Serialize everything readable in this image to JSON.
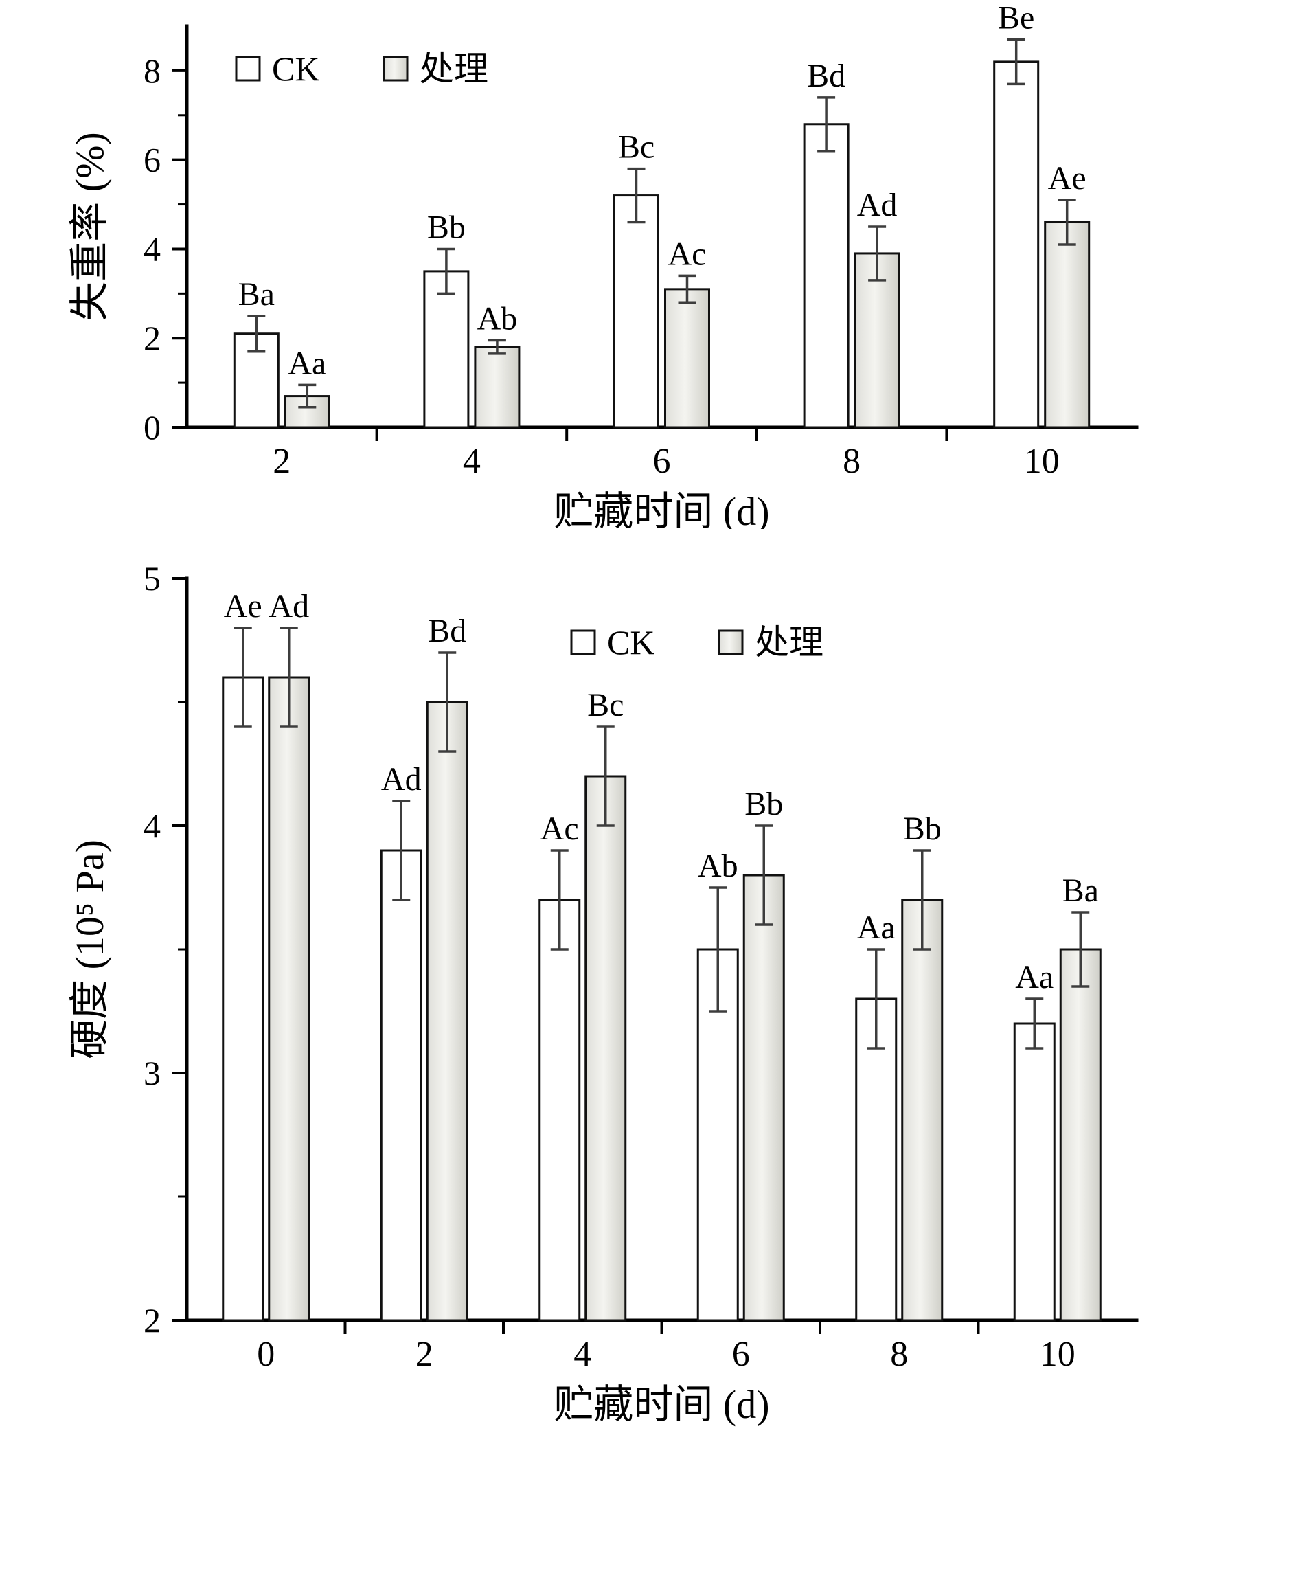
{
  "figure": {
    "background": "#ffffff",
    "panel_count": 2
  },
  "chart_data": [
    {
      "type": "bar",
      "title": "",
      "xlabel": "贮藏时间 (d)",
      "ylabel": "失重率 (%)",
      "categories": [
        "2",
        "4",
        "6",
        "8",
        "10"
      ],
      "ylim": [
        0,
        9
      ],
      "yticks": [
        0,
        2,
        4,
        6,
        8
      ],
      "yticks_minor": [
        1,
        3,
        5,
        7
      ],
      "grid": false,
      "legend": {
        "position": "top-left"
      },
      "series": [
        {
          "key": "ck",
          "name": "CK",
          "values": [
            2.1,
            3.5,
            5.2,
            6.8,
            8.2
          ],
          "errors": [
            0.4,
            0.5,
            0.6,
            0.6,
            0.5
          ],
          "sig_labels": [
            "Ba",
            "Bb",
            "Bc",
            "Bd",
            "Be"
          ]
        },
        {
          "key": "treated",
          "name": "处理",
          "values": [
            0.7,
            1.8,
            3.1,
            3.9,
            4.6
          ],
          "errors": [
            0.25,
            0.15,
            0.3,
            0.6,
            0.5
          ],
          "sig_labels": [
            "Aa",
            "Ab",
            "Ac",
            "Ad",
            "Ae"
          ]
        }
      ]
    },
    {
      "type": "bar",
      "title": "",
      "xlabel": "贮藏时间 (d)",
      "ylabel": "硬度 (10⁵ Pa)",
      "categories": [
        "0",
        "2",
        "4",
        "6",
        "8",
        "10"
      ],
      "ylim": [
        2,
        5
      ],
      "yticks": [
        2,
        3,
        4,
        5
      ],
      "yticks_minor": [
        2.5,
        3.5,
        4.5
      ],
      "grid": false,
      "legend": {
        "position": "upper-middle-right"
      },
      "series": [
        {
          "key": "ck",
          "name": "CK",
          "values": [
            4.6,
            3.9,
            3.7,
            3.5,
            3.3,
            3.2
          ],
          "errors": [
            0.2,
            0.2,
            0.2,
            0.25,
            0.2,
            0.1
          ],
          "sig_labels": [
            "Ae",
            "Ad",
            "Ac",
            "Ab",
            "Aa",
            "Aa"
          ]
        },
        {
          "key": "treated",
          "name": "处理",
          "values": [
            4.6,
            4.5,
            4.2,
            3.8,
            3.7,
            3.5
          ],
          "errors": [
            0.2,
            0.2,
            0.2,
            0.2,
            0.2,
            0.15
          ],
          "sig_labels": [
            "Ad",
            "Bd",
            "Bc",
            "Bb",
            "Bb",
            "Ba"
          ]
        }
      ]
    }
  ],
  "style": {
    "axis_color": "#000000",
    "text_color": "#000000",
    "bar_stroke": "#111111",
    "error_color": "#3d3d3d",
    "ck_fill": "#ffffff",
    "treated_gradient": [
      "#dfdfda",
      "#f4f4f0",
      "#cfcfc8"
    ]
  }
}
